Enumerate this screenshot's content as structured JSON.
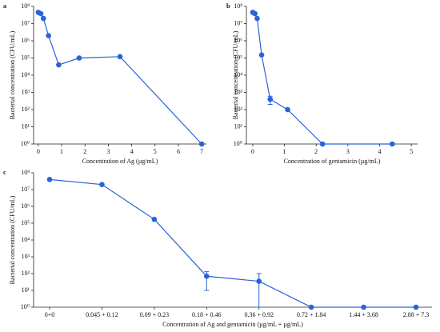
{
  "chart_data": [
    {
      "type": "line",
      "panel": "a",
      "color": "#2b63d6",
      "xlabel": "Concentration of Ag (µg/mL)",
      "ylabel": "Bacterial concentration (CFU/mL)",
      "x": [
        0,
        0.11,
        0.22,
        0.44,
        0.875,
        1.75,
        3.5,
        7
      ],
      "values": [
        45000000,
        38000000,
        20000000,
        2000000,
        40000,
        100000,
        120000,
        1
      ],
      "error_low": [
        null,
        null,
        null,
        null,
        null,
        null,
        null,
        null
      ],
      "error_high": [
        null,
        null,
        null,
        null,
        null,
        null,
        null,
        null
      ],
      "xlim": [
        -0.2,
        7.2
      ],
      "xticks": [
        0,
        1,
        2,
        3,
        4,
        5,
        6,
        7
      ],
      "ylim": [
        1,
        100000000
      ],
      "log_y": true,
      "yticks": [
        {
          "value": 1,
          "label": "10⁰"
        },
        {
          "value": 10,
          "label": "10¹"
        },
        {
          "value": 100,
          "label": "10²"
        },
        {
          "value": 1000,
          "label": "10³"
        },
        {
          "value": 10000,
          "label": "10⁴"
        },
        {
          "value": 100000,
          "label": "10⁵"
        },
        {
          "value": 1000000,
          "label": "10⁶"
        },
        {
          "value": 10000000,
          "label": "10⁷"
        },
        {
          "value": 100000000,
          "label": "10⁸"
        }
      ]
    },
    {
      "type": "line",
      "panel": "b",
      "color": "#2b63d6",
      "xlabel": "Concentration of gentamicin (µg/mL)",
      "ylabel": "Bacterial concentration (CFU/mL)",
      "x": [
        0,
        0.07,
        0.14,
        0.28,
        0.55,
        1.1,
        2.2,
        4.4
      ],
      "values": [
        45000000,
        38000000,
        20000000,
        150000,
        400,
        100,
        1,
        1
      ],
      "error_low": [
        null,
        null,
        null,
        null,
        200,
        null,
        null,
        null
      ],
      "error_high": [
        null,
        null,
        null,
        null,
        200,
        null,
        null,
        null
      ],
      "xlim": [
        -0.2,
        5.2
      ],
      "xticks": [
        0,
        1,
        2,
        3,
        4,
        5
      ],
      "ylim": [
        1,
        100000000
      ],
      "log_y": true,
      "yticks": [
        {
          "value": 1,
          "label": "10⁰"
        },
        {
          "value": 10,
          "label": "10¹"
        },
        {
          "value": 100,
          "label": "10²"
        },
        {
          "value": 1000,
          "label": "10³"
        },
        {
          "value": 10000,
          "label": "10⁴"
        },
        {
          "value": 100000,
          "label": "10⁵"
        },
        {
          "value": 1000000,
          "label": "10⁶"
        },
        {
          "value": 10000000,
          "label": "10⁷"
        },
        {
          "value": 100000000,
          "label": "10⁸"
        }
      ]
    },
    {
      "type": "line",
      "panel": "c",
      "color": "#2b63d6",
      "xlabel": "Concentration of Ag and gentamicin (µg/mL + µg/mL)",
      "ylabel": "Bacterial concentration (CFU/mL)",
      "categories": [
        "0+0",
        "0.045 + 0.12",
        "0.09 + 0.23",
        "0.18 + 0.46",
        "0.36 + 0.92",
        "0.72 + 1.84",
        "1.44 + 3.68",
        "2.88 + 7.3"
      ],
      "values": [
        40000000,
        20000000,
        170000,
        70,
        35,
        1,
        1,
        1
      ],
      "error_low": [
        null,
        null,
        null,
        60,
        34,
        null,
        null,
        null
      ],
      "error_high": [
        null,
        null,
        null,
        60,
        65,
        null,
        null,
        null
      ],
      "ylim": [
        1,
        100000000
      ],
      "log_y": true,
      "yticks": [
        {
          "value": 1,
          "label": "10⁰"
        },
        {
          "value": 10,
          "label": "10¹"
        },
        {
          "value": 100,
          "label": "10²"
        },
        {
          "value": 1000,
          "label": "10³"
        },
        {
          "value": 10000,
          "label": "10⁴"
        },
        {
          "value": 100000,
          "label": "10⁵"
        },
        {
          "value": 1000000,
          "label": "10⁶"
        },
        {
          "value": 10000000,
          "label": "10⁷"
        },
        {
          "value": 100000000,
          "label": "10⁸"
        }
      ]
    }
  ]
}
